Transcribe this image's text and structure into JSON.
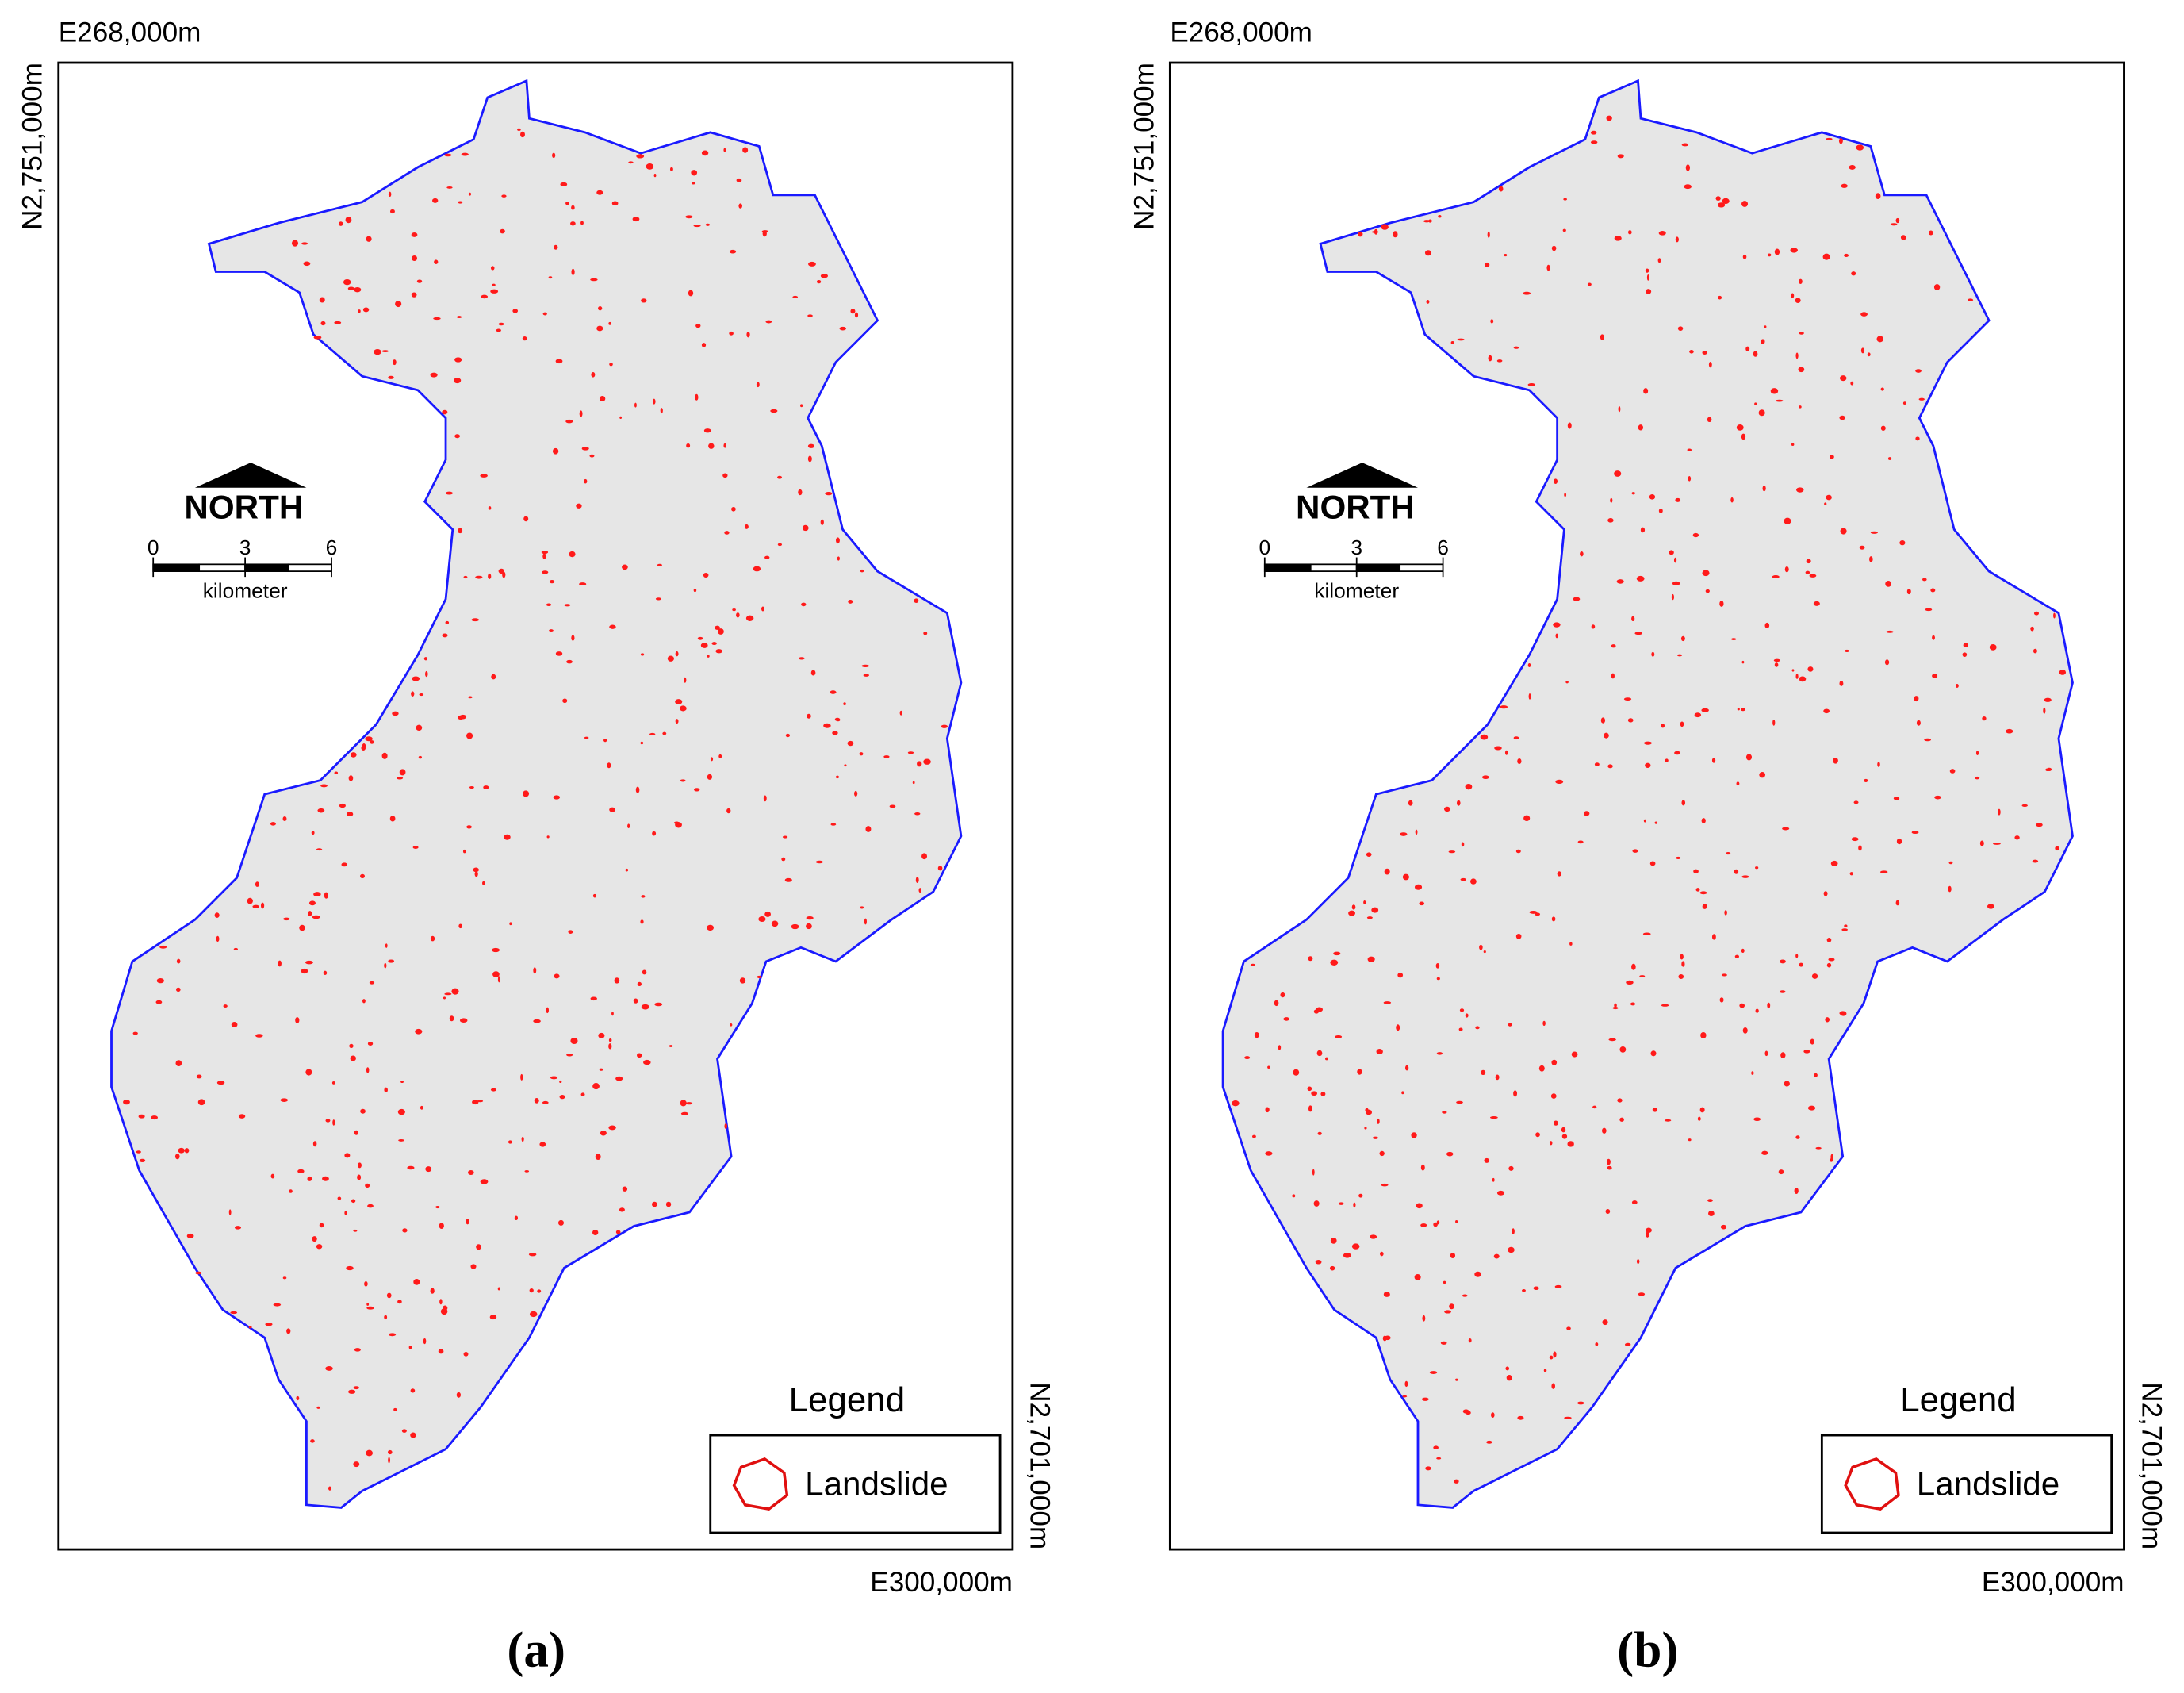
{
  "panels": [
    {
      "easting_top": "E268,000m",
      "northing_top": "N2,751,000m",
      "northing_bottom": "N2,701,000m",
      "easting_bottom": "E300,000m",
      "north_label": "NORTH",
      "scale": {
        "ticks": [
          "0",
          "3",
          "6"
        ],
        "unit": "kilometer"
      },
      "legend": {
        "title": "Legend",
        "item": "Landslide"
      },
      "caption": "(a)"
    },
    {
      "easting_top": "E268,000m",
      "northing_top": "N2,751,000m",
      "northing_bottom": "N2,701,000m",
      "easting_bottom": "E300,000m",
      "north_label": "NORTH",
      "scale": {
        "ticks": [
          "0",
          "3",
          "6"
        ],
        "unit": "kilometer"
      },
      "legend": {
        "title": "Legend",
        "item": "Landslide"
      },
      "caption": "(b)"
    }
  ]
}
